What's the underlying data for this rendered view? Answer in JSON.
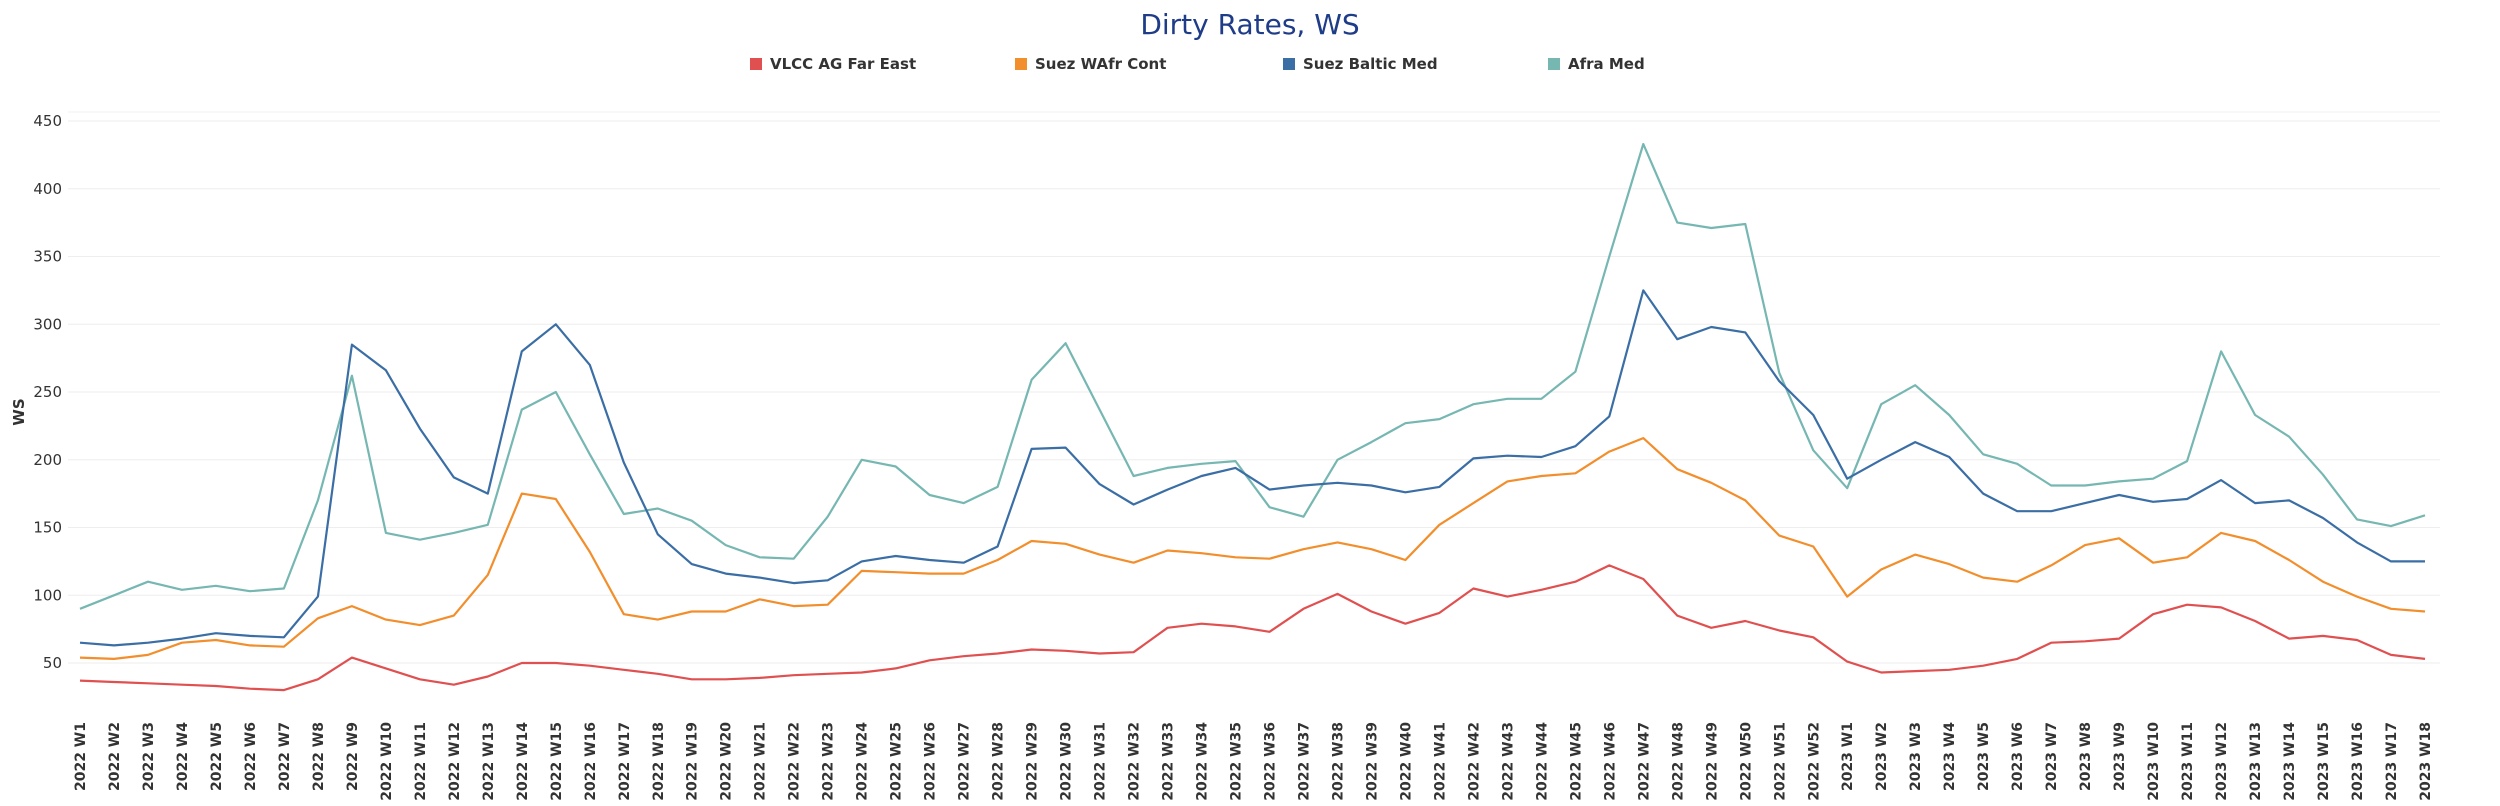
{
  "chart_data": {
    "type": "line",
    "title": "Dirty Rates, WS",
    "ylabel": "WS",
    "xlabel": "",
    "ylim": [
      0,
      450
    ],
    "yticks": [
      50,
      100,
      150,
      200,
      250,
      300,
      350,
      400,
      450
    ],
    "grid": true,
    "legend_position": "top",
    "categories": [
      "2022 W1",
      "2022 W2",
      "2022 W3",
      "2022 W4",
      "2022 W5",
      "2022 W6",
      "2022 W7",
      "2022 W8",
      "2022 W9",
      "2022 W10",
      "2022 W11",
      "2022 W12",
      "2022 W13",
      "2022 W14",
      "2022 W15",
      "2022 W16",
      "2022 W17",
      "2022 W18",
      "2022 W19",
      "2022 W20",
      "2022 W21",
      "2022 W22",
      "2022 W23",
      "2022 W24",
      "2022 W25",
      "2022 W26",
      "2022 W27",
      "2022 W28",
      "2022 W29",
      "2022 W30",
      "2022 W31",
      "2022 W32",
      "2022 W33",
      "2022 W34",
      "2022 W35",
      "2022 W36",
      "2022 W37",
      "2022 W38",
      "2022 W39",
      "2022 W40",
      "2022 W41",
      "2022 W42",
      "2022 W43",
      "2022 W44",
      "2022 W45",
      "2022 W46",
      "2022 W47",
      "2022 W48",
      "2022 W49",
      "2022 W50",
      "2022 W51",
      "2022 W52",
      "2023 W1",
      "2023 W2",
      "2023 W3",
      "2023 W4",
      "2023 W5",
      "2023 W6",
      "2023 W7",
      "2023 W8",
      "2023 W9",
      "2023 W10",
      "2023 W11",
      "2023 W12",
      "2023 W13",
      "2023 W14",
      "2023 W15",
      "2023 W16",
      "2023 W17",
      "2023 W18"
    ],
    "series": [
      {
        "name": "VLCC AG Far East",
        "color": "#e05050",
        "values": [
          37,
          36,
          35,
          34,
          33,
          31,
          30,
          38,
          54,
          46,
          38,
          34,
          40,
          50,
          50,
          48,
          45,
          42,
          38,
          38,
          39,
          41,
          42,
          43,
          46,
          52,
          55,
          57,
          60,
          59,
          57,
          58,
          76,
          79,
          77,
          73,
          90,
          101,
          88,
          79,
          87,
          105,
          99,
          104,
          110,
          122,
          112,
          85,
          76,
          81,
          74,
          69,
          51,
          43,
          44,
          45,
          48,
          53,
          65,
          66,
          68,
          86,
          93,
          91,
          81,
          68,
          70,
          67,
          56,
          53
        ]
      },
      {
        "name": "Suez WAfr Cont",
        "color": "#f28e2b",
        "values": [
          54,
          53,
          56,
          65,
          67,
          63,
          62,
          83,
          92,
          82,
          78,
          85,
          115,
          175,
          171,
          132,
          86,
          82,
          88,
          88,
          97,
          92,
          93,
          118,
          117,
          116,
          116,
          126,
          140,
          138,
          130,
          124,
          133,
          131,
          128,
          127,
          134,
          139,
          134,
          126,
          152,
          168,
          184,
          188,
          190,
          206,
          216,
          193,
          183,
          170,
          144,
          136,
          99,
          119,
          130,
          123,
          113,
          110,
          122,
          137,
          142,
          124,
          128,
          146,
          140,
          126,
          110,
          99,
          90,
          88
        ]
      },
      {
        "name": "Suez Baltic Med",
        "color": "#3a6ea5",
        "values": [
          65,
          63,
          65,
          68,
          72,
          70,
          69,
          99,
          285,
          266,
          223,
          187,
          175,
          280,
          300,
          270,
          198,
          145,
          123,
          116,
          113,
          109,
          111,
          125,
          129,
          126,
          124,
          136,
          208,
          209,
          182,
          167,
          178,
          188,
          194,
          178,
          181,
          183,
          181,
          176,
          180,
          201,
          203,
          202,
          210,
          232,
          325,
          289,
          298,
          294,
          258,
          233,
          186,
          200,
          213,
          202,
          175,
          162,
          162,
          168,
          174,
          169,
          171,
          185,
          168,
          170,
          157,
          139,
          125,
          125
        ]
      },
      {
        "name": "Afra Med",
        "color": "#76b7b2",
        "values": [
          90,
          100,
          110,
          104,
          107,
          103,
          105,
          170,
          262,
          146,
          141,
          146,
          152,
          237,
          250,
          204,
          160,
          164,
          155,
          137,
          128,
          127,
          158,
          200,
          195,
          174,
          168,
          180,
          259,
          286,
          237,
          188,
          194,
          197,
          199,
          165,
          158,
          200,
          213,
          227,
          230,
          241,
          245,
          245,
          265,
          350,
          433,
          375,
          371,
          374,
          264,
          207,
          179,
          241,
          255,
          233,
          204,
          197,
          181,
          181,
          184,
          186,
          199,
          280,
          233,
          217,
          189,
          156,
          151,
          159
        ]
      }
    ]
  }
}
